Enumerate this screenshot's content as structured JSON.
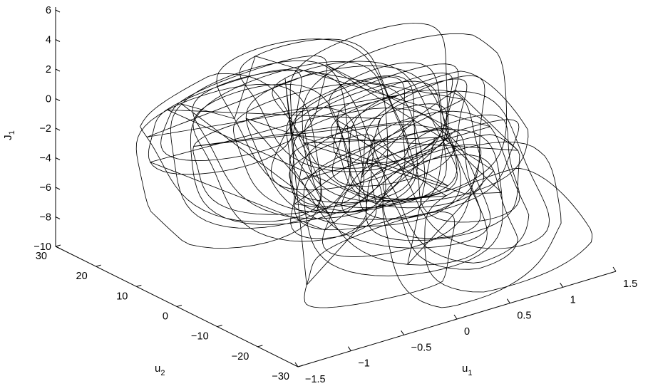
{
  "chart_data": {
    "type": "line",
    "projection": "3d",
    "title": "",
    "axes": {
      "x": {
        "label": "u",
        "label_subscript": "1",
        "lim": [
          -1.5,
          1.5
        ],
        "ticks": [
          -1.5,
          -1,
          -0.5,
          0,
          0.5,
          1,
          1.5
        ],
        "tick_labels": [
          "−1.5",
          "−1",
          "−0.5",
          "0",
          "0.5",
          "1",
          "1.5"
        ]
      },
      "y": {
        "label": "u",
        "label_subscript": "2",
        "lim": [
          -30,
          30
        ],
        "ticks": [
          -30,
          -20,
          -10,
          0,
          10,
          20,
          30
        ],
        "tick_labels": [
          "−30",
          "−20",
          "−10",
          "0",
          "10",
          "20",
          "30"
        ]
      },
      "z": {
        "label": "J",
        "label_subscript": "1",
        "lim": [
          -10,
          6
        ],
        "ticks": [
          -10,
          -8,
          -6,
          -4,
          -2,
          0,
          2,
          4,
          6
        ],
        "tick_labels": [
          "−10",
          "−8",
          "−6",
          "−4",
          "−2",
          "0",
          "2",
          "4",
          "6"
        ]
      }
    },
    "grid": false,
    "legend": "none",
    "series": [
      {
        "style": "solid",
        "color": "#000000",
        "description_points": [
          [
            0.4,
            -25,
            -4.5
          ],
          [
            0.1,
            -20,
            -2.5
          ],
          [
            -0.4,
            -5,
            -2.0
          ],
          [
            -0.8,
            15,
            -4.0
          ],
          [
            -0.5,
            25,
            -3.0
          ],
          [
            0.1,
            20,
            -1.0
          ],
          [
            0.5,
            5,
            -2.0
          ],
          [
            0.8,
            -12,
            -4.0
          ],
          [
            0.9,
            -22,
            -8.5
          ],
          [
            1.2,
            -26,
            -6.0
          ],
          [
            1.0,
            -18,
            -3.0
          ],
          [
            0.6,
            0,
            -2.5
          ],
          [
            0.2,
            18,
            -0.5
          ],
          [
            -0.2,
            24,
            0.0
          ],
          [
            -0.6,
            10,
            -3.5
          ],
          [
            -1.0,
            -8,
            -9.0
          ],
          [
            -1.1,
            -15,
            -5.0
          ],
          [
            -0.6,
            -10,
            -1.0
          ],
          [
            0.0,
            5,
            1.5
          ],
          [
            0.6,
            15,
            0.5
          ]
        ]
      }
    ]
  }
}
